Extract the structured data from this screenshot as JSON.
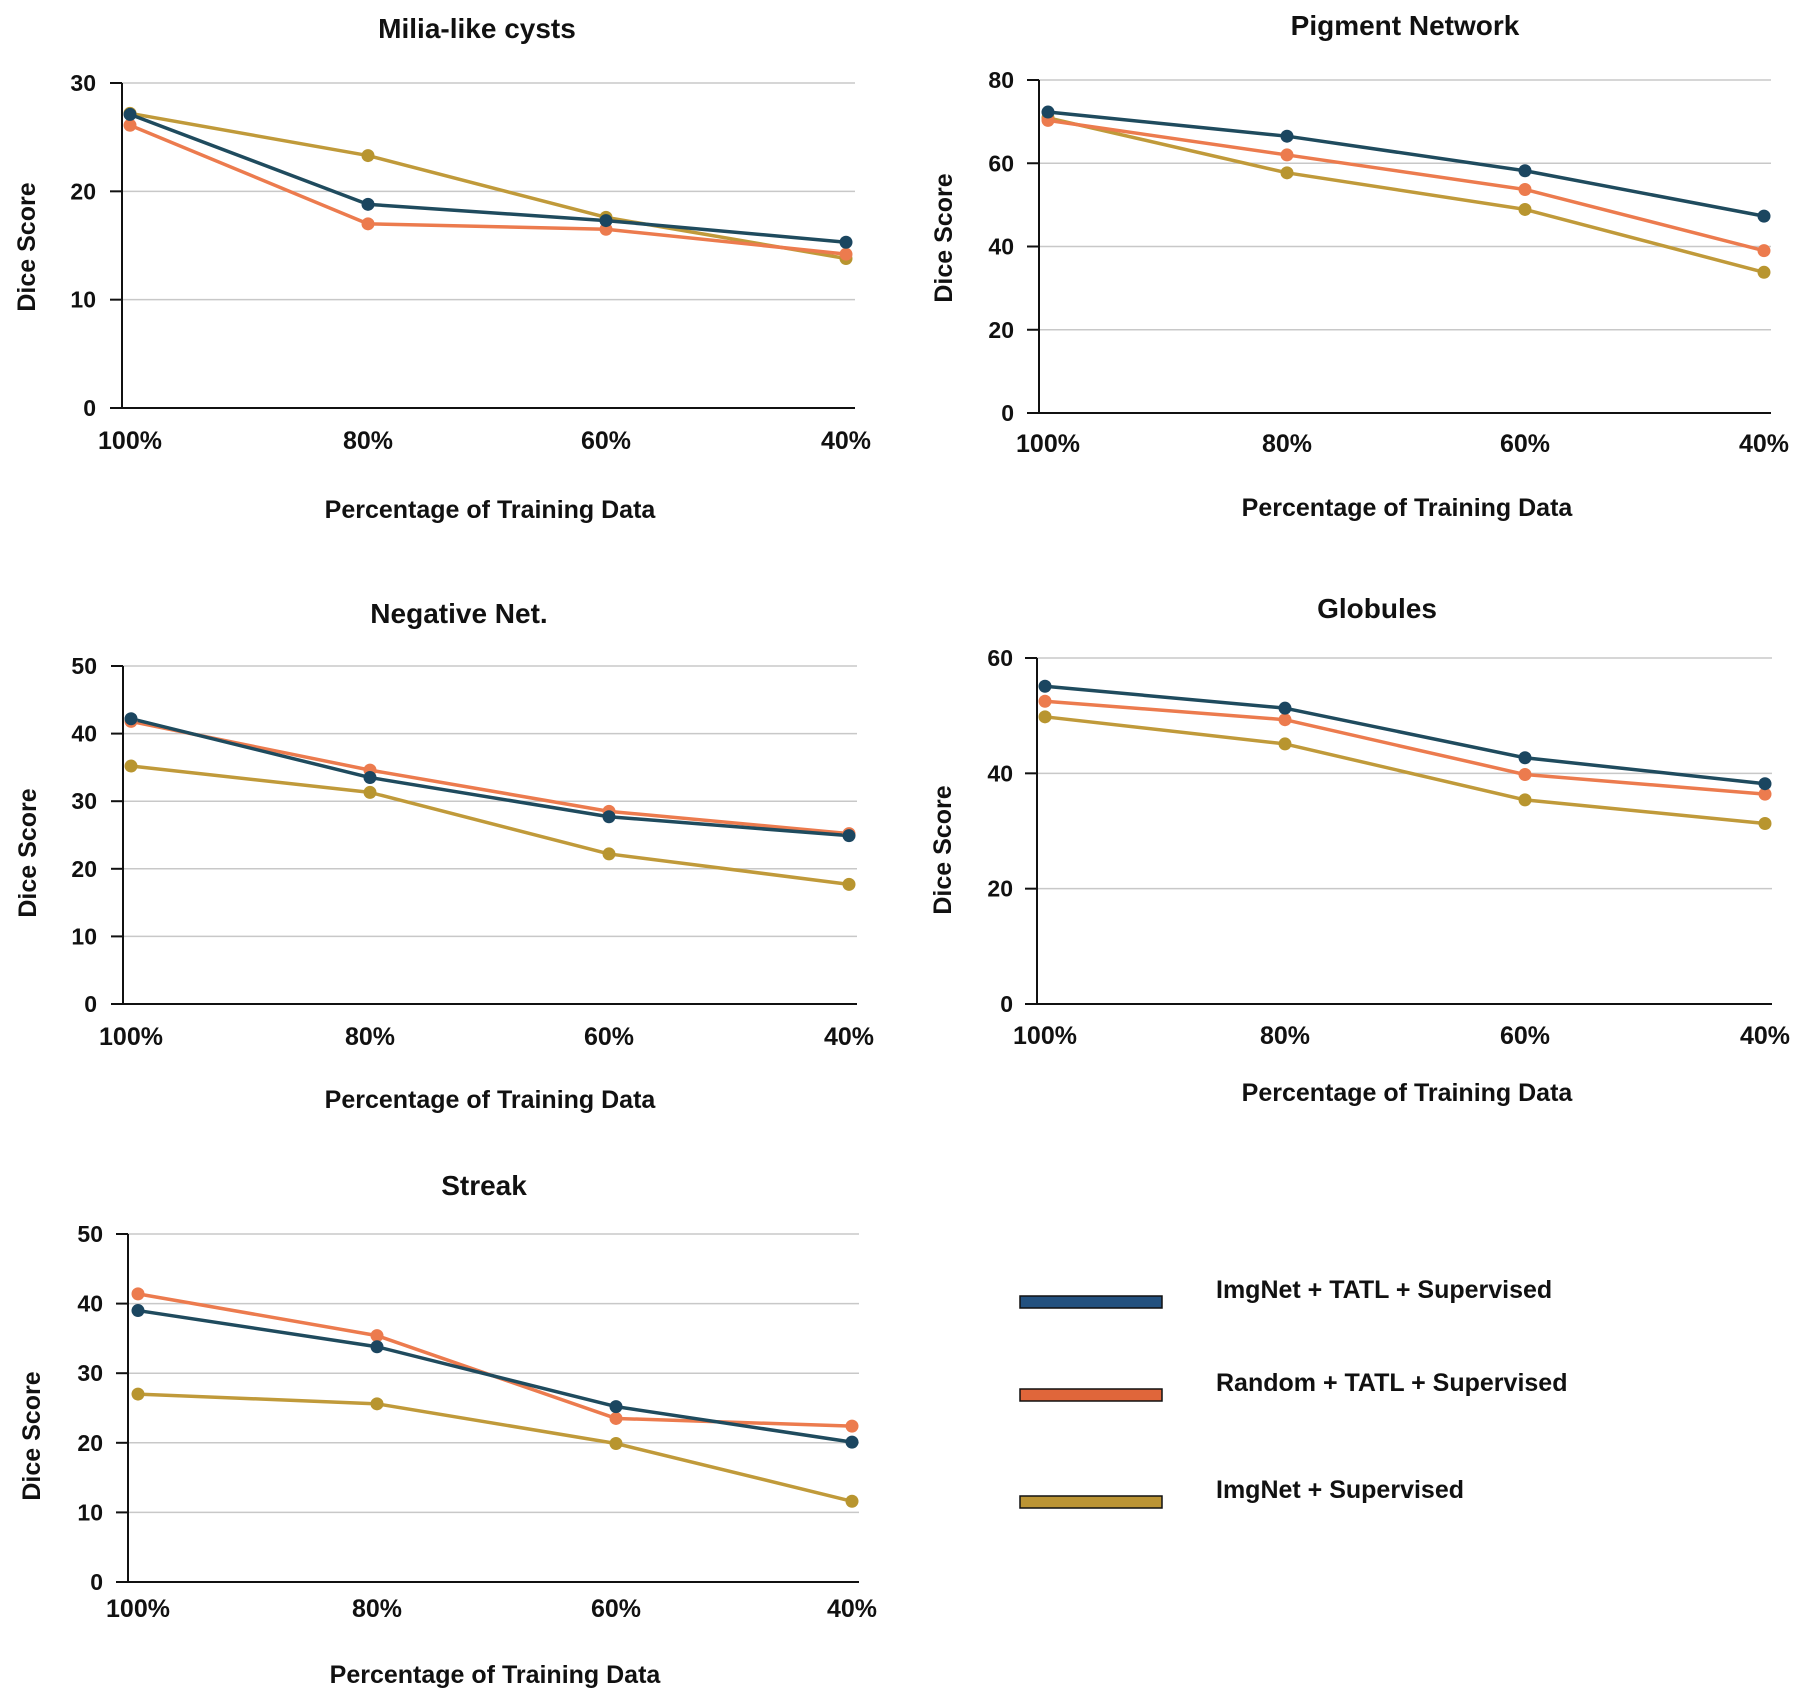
{
  "chart_data": [
    {
      "id": "milia",
      "type": "line",
      "title": "Milia-like cysts",
      "xlabel": "Percentage of Training Data",
      "ylabel": "Dice Score",
      "categories": [
        "100%",
        "80%",
        "60%",
        "40%"
      ],
      "ylim": [
        0,
        30
      ],
      "yticks": [
        0,
        10,
        20,
        30
      ],
      "grid": true,
      "series": [
        {
          "name": "ImgNet + TATL + Supervised",
          "values": [
            27.1,
            18.8,
            17.3,
            15.3
          ]
        },
        {
          "name": "Random + TATL + Supervised",
          "values": [
            26.1,
            17.0,
            16.5,
            14.2
          ]
        },
        {
          "name": "ImgNet + Supervised",
          "values": [
            27.2,
            23.3,
            17.6,
            13.8
          ]
        }
      ]
    },
    {
      "id": "pigment",
      "type": "line",
      "title": "Pigment Network",
      "xlabel": "Percentage of Training Data",
      "ylabel": "Dice Score",
      "categories": [
        "100%",
        "80%",
        "60%",
        "40%"
      ],
      "ylim": [
        0,
        80
      ],
      "yticks": [
        0,
        20,
        40,
        60,
        80
      ],
      "grid": true,
      "series": [
        {
          "name": "ImgNet + TATL + Supervised",
          "values": [
            72.3,
            66.5,
            58.2,
            47.3
          ]
        },
        {
          "name": "Random + TATL + Supervised",
          "values": [
            70.3,
            62.0,
            53.7,
            39.0
          ]
        },
        {
          "name": "ImgNet + Supervised",
          "values": [
            70.9,
            57.7,
            48.9,
            33.8
          ]
        }
      ]
    },
    {
      "id": "negative",
      "type": "line",
      "title": "Negative Net.",
      "xlabel": "Percentage of Training Data",
      "ylabel": "Dice Score",
      "categories": [
        "100%",
        "80%",
        "60%",
        "40%"
      ],
      "ylim": [
        0,
        50
      ],
      "yticks": [
        0,
        10,
        20,
        30,
        40,
        50
      ],
      "grid": true,
      "series": [
        {
          "name": "ImgNet + TATL + Supervised",
          "values": [
            42.2,
            33.5,
            27.7,
            24.9
          ]
        },
        {
          "name": "Random + TATL + Supervised",
          "values": [
            41.8,
            34.6,
            28.5,
            25.2
          ]
        },
        {
          "name": "ImgNet + Supervised",
          "values": [
            35.2,
            31.3,
            22.2,
            17.7
          ]
        }
      ]
    },
    {
      "id": "globules",
      "type": "line",
      "title": "Globules",
      "xlabel": "Percentage of Training Data",
      "ylabel": "Dice Score",
      "categories": [
        "100%",
        "80%",
        "60%",
        "40%"
      ],
      "ylim": [
        0,
        60
      ],
      "yticks": [
        0,
        20,
        40,
        60
      ],
      "grid": true,
      "series": [
        {
          "name": "ImgNet + TATL + Supervised",
          "values": [
            55.1,
            51.3,
            42.7,
            38.2
          ]
        },
        {
          "name": "Random + TATL + Supervised",
          "values": [
            52.5,
            49.3,
            39.8,
            36.4
          ]
        },
        {
          "name": "ImgNet + Supervised",
          "values": [
            49.8,
            45.1,
            35.4,
            31.3
          ]
        }
      ]
    },
    {
      "id": "streak",
      "type": "line",
      "title": "Streak",
      "xlabel": "Percentage of Training Data",
      "ylabel": "Dice Score",
      "categories": [
        "100%",
        "80%",
        "60%",
        "40%"
      ],
      "ylim": [
        0,
        50
      ],
      "yticks": [
        0,
        10,
        20,
        30,
        40,
        50
      ],
      "grid": true,
      "series": [
        {
          "name": "ImgNet + TATL + Supervised",
          "values": [
            39.0,
            33.8,
            25.2,
            20.1
          ]
        },
        {
          "name": "Random + TATL + Supervised",
          "values": [
            41.4,
            35.4,
            23.5,
            22.4
          ]
        },
        {
          "name": "ImgNet + Supervised",
          "values": [
            27.0,
            25.6,
            19.9,
            11.6
          ]
        }
      ]
    }
  ],
  "legend": {
    "position": "bottom-right",
    "items": [
      {
        "label": "ImgNet + TATL + Supervised",
        "color": "#23517f",
        "marker_color": "#1b4660"
      },
      {
        "label": "Random + TATL + Supervised",
        "color": "#e0663a",
        "marker_color": "#ec7b4e"
      },
      {
        "label": "ImgNet + Supervised",
        "color": "#bb9434",
        "marker_color": "#b8952f"
      }
    ]
  },
  "colors": {
    "series_lines": [
      "#1f4b5e",
      "#ec7b4e",
      "#c09a3a"
    ],
    "series_markers": [
      "#1b4660",
      "#ec7b4e",
      "#b8952f"
    ]
  }
}
